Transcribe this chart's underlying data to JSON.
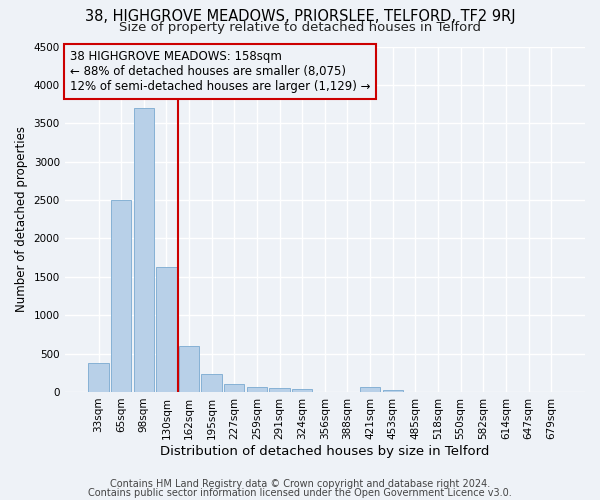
{
  "title1": "38, HIGHGROVE MEADOWS, PRIORSLEE, TELFORD, TF2 9RJ",
  "title2": "Size of property relative to detached houses in Telford",
  "xlabel": "Distribution of detached houses by size in Telford",
  "ylabel": "Number of detached properties",
  "categories": [
    "33sqm",
    "65sqm",
    "98sqm",
    "130sqm",
    "162sqm",
    "195sqm",
    "227sqm",
    "259sqm",
    "291sqm",
    "324sqm",
    "356sqm",
    "388sqm",
    "421sqm",
    "453sqm",
    "485sqm",
    "518sqm",
    "550sqm",
    "582sqm",
    "614sqm",
    "647sqm",
    "679sqm"
  ],
  "values": [
    380,
    2500,
    3700,
    1630,
    600,
    240,
    110,
    60,
    50,
    45,
    0,
    0,
    60,
    30,
    0,
    0,
    0,
    0,
    0,
    0,
    0
  ],
  "bar_color": "#b8d0e8",
  "bar_edge_color": "#7aaad0",
  "property_line_color": "#cc0000",
  "property_line_idx": 3.5,
  "annotation_line1": "38 HIGHGROVE MEADOWS: 158sqm",
  "annotation_line2": "← 88% of detached houses are smaller (8,075)",
  "annotation_line3": "12% of semi-detached houses are larger (1,129) →",
  "annotation_box_color": "#cc0000",
  "footer1": "Contains HM Land Registry data © Crown copyright and database right 2024.",
  "footer2": "Contains public sector information licensed under the Open Government Licence v3.0.",
  "ylim": [
    0,
    4500
  ],
  "yticks": [
    0,
    500,
    1000,
    1500,
    2000,
    2500,
    3000,
    3500,
    4000,
    4500
  ],
  "bg_color": "#eef2f7",
  "grid_color": "#ffffff",
  "title1_fontsize": 10.5,
  "title2_fontsize": 9.5,
  "xlabel_fontsize": 9.5,
  "ylabel_fontsize": 8.5,
  "tick_fontsize": 7.5,
  "annotation_fontsize": 8.5,
  "footer_fontsize": 7.0
}
